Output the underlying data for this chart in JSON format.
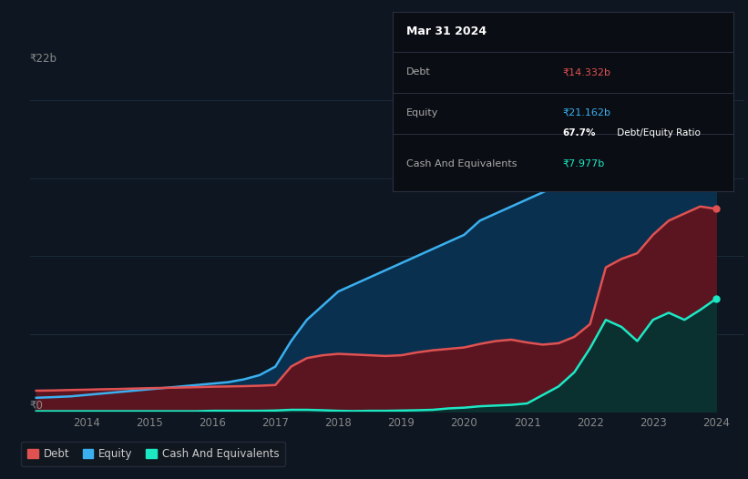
{
  "background_color": "#0e1621",
  "chart_bg": "#0e1621",
  "grid_color": "#1e2d3d",
  "years": [
    2013.2,
    2013.5,
    2013.75,
    2014.0,
    2014.25,
    2014.5,
    2014.75,
    2015.0,
    2015.25,
    2015.5,
    2015.75,
    2016.0,
    2016.25,
    2016.5,
    2016.75,
    2017.0,
    2017.25,
    2017.5,
    2017.75,
    2018.0,
    2018.25,
    2018.5,
    2018.75,
    2019.0,
    2019.25,
    2019.5,
    2019.75,
    2020.0,
    2020.25,
    2020.5,
    2020.75,
    2021.0,
    2021.25,
    2021.5,
    2021.75,
    2022.0,
    2022.25,
    2022.5,
    2022.75,
    2023.0,
    2023.25,
    2023.5,
    2023.75,
    2024.0
  ],
  "debt": [
    1.5,
    1.52,
    1.55,
    1.57,
    1.6,
    1.62,
    1.65,
    1.68,
    1.7,
    1.72,
    1.75,
    1.78,
    1.8,
    1.82,
    1.85,
    1.9,
    3.2,
    3.8,
    4.0,
    4.1,
    4.05,
    4.0,
    3.95,
    4.0,
    4.2,
    4.35,
    4.45,
    4.55,
    4.8,
    5.0,
    5.1,
    4.9,
    4.75,
    4.85,
    5.3,
    6.2,
    10.2,
    10.8,
    11.2,
    12.5,
    13.5,
    14.0,
    14.5,
    14.332
  ],
  "equity": [
    1.0,
    1.05,
    1.1,
    1.2,
    1.3,
    1.4,
    1.5,
    1.6,
    1.7,
    1.8,
    1.9,
    2.0,
    2.1,
    2.3,
    2.6,
    3.2,
    5.0,
    6.5,
    7.5,
    8.5,
    9.0,
    9.5,
    10.0,
    10.5,
    11.0,
    11.5,
    12.0,
    12.5,
    13.5,
    14.0,
    14.5,
    15.0,
    15.5,
    16.0,
    16.5,
    17.5,
    18.5,
    19.0,
    19.5,
    20.0,
    20.5,
    21.0,
    21.5,
    21.162
  ],
  "cash": [
    0.05,
    0.05,
    0.05,
    0.05,
    0.05,
    0.05,
    0.05,
    0.05,
    0.05,
    0.05,
    0.05,
    0.08,
    0.08,
    0.08,
    0.08,
    0.1,
    0.15,
    0.15,
    0.12,
    0.08,
    0.06,
    0.08,
    0.08,
    0.1,
    0.12,
    0.15,
    0.25,
    0.3,
    0.4,
    0.45,
    0.5,
    0.6,
    1.2,
    1.8,
    2.8,
    4.5,
    6.5,
    6.0,
    5.0,
    6.5,
    7.0,
    6.5,
    7.2,
    7.977
  ],
  "debt_color": "#e05252",
  "equity_color": "#3ab0f0",
  "cash_color": "#1de8c4",
  "debt_fill": "#5a1520",
  "equity_fill": "#0a3050",
  "cash_fill": "#0a3030",
  "ylim": [
    0,
    24
  ],
  "xlim_start": 2013.1,
  "xlim_end": 2024.45,
  "xtick_labels": [
    "2014",
    "2015",
    "2016",
    "2017",
    "2018",
    "2019",
    "2020",
    "2021",
    "2022",
    "2023",
    "2024"
  ],
  "xtick_positions": [
    2014,
    2015,
    2016,
    2017,
    2018,
    2019,
    2020,
    2021,
    2022,
    2023,
    2024
  ],
  "y22b_label": "₹22b",
  "y0_label": "₹0",
  "tooltip_title": "Mar 31 2024",
  "tooltip_debt_label": "Debt",
  "tooltip_debt_value": "₹14.332b",
  "tooltip_equity_label": "Equity",
  "tooltip_equity_value": "₹21.162b",
  "tooltip_ratio_bold": "67.7%",
  "tooltip_ratio_rest": " Debt/Equity Ratio",
  "tooltip_cash_label": "Cash And Equivalents",
  "tooltip_cash_value": "₹7.977b",
  "legend_items": [
    {
      "label": "Debt",
      "color": "#e05252"
    },
    {
      "label": "Equity",
      "color": "#3ab0f0"
    },
    {
      "label": "Cash And Equivalents",
      "color": "#1de8c4"
    }
  ]
}
